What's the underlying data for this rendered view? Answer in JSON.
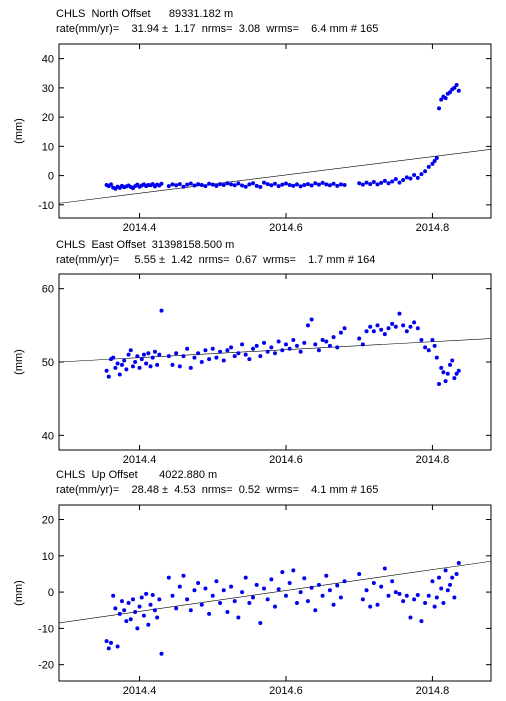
{
  "panels": [
    {
      "header_line1": "CHLS  North Offset      89331.182 m",
      "header_line2": "rate(mm/yr)=    31.94 ±  1.17  nrms=  3.08  wrms=    6.4 mm # 165"
    },
    {
      "header_line1": "CHLS  East Offset  31398158.500 m",
      "header_line2": "rate(mm/yr)=     5.55 ±  1.42  nrms=  0.67  wrms=    1.7 mm # 164"
    },
    {
      "header_line1": "CHLS  Up Offset       4022.880 m",
      "header_line2": "rate(mm/yr)=    28.48 ±  4.53  nrms=  0.52  wrms=    4.1 mm # 165"
    }
  ],
  "colors": {
    "points": "#0000ee",
    "trend": "#000000"
  },
  "chart_data": [
    {
      "type": "scatter",
      "title": "CHLS  North Offset      89331.182 m",
      "ylabel": "(mm)",
      "xlim": [
        2014.29,
        2014.88
      ],
      "ylim": [
        -14.5,
        45
      ],
      "xticks": [
        2014.4,
        2014.6,
        2014.8
      ],
      "yticks": [
        -10,
        0,
        10,
        20,
        30,
        40
      ],
      "trend": [
        [
          2014.29,
          -9.5
        ],
        [
          2014.88,
          9.0
        ]
      ],
      "x": [
        2014.355,
        2014.358,
        2014.361,
        2014.364,
        2014.367,
        2014.37,
        2014.373,
        2014.376,
        2014.379,
        2014.382,
        2014.385,
        2014.388,
        2014.391,
        2014.394,
        2014.397,
        2014.4,
        2014.403,
        2014.406,
        2014.409,
        2014.412,
        2014.415,
        2014.418,
        2014.421,
        2014.424,
        2014.427,
        2014.43,
        2014.44,
        2014.445,
        2014.45,
        2014.455,
        2014.46,
        2014.465,
        2014.47,
        2014.475,
        2014.48,
        2014.485,
        2014.49,
        2014.495,
        2014.5,
        2014.505,
        2014.51,
        2014.515,
        2014.52,
        2014.525,
        2014.53,
        2014.535,
        2014.54,
        2014.545,
        2014.55,
        2014.555,
        2014.56,
        2014.565,
        2014.57,
        2014.575,
        2014.58,
        2014.585,
        2014.59,
        2014.595,
        2014.6,
        2014.605,
        2014.61,
        2014.615,
        2014.62,
        2014.625,
        2014.63,
        2014.635,
        2014.64,
        2014.645,
        2014.65,
        2014.655,
        2014.66,
        2014.665,
        2014.67,
        2014.675,
        2014.68,
        2014.7,
        2014.705,
        2014.71,
        2014.715,
        2014.72,
        2014.725,
        2014.73,
        2014.735,
        2014.74,
        2014.745,
        2014.75,
        2014.755,
        2014.76,
        2014.765,
        2014.77,
        2014.775,
        2014.78,
        2014.785,
        2014.79,
        2014.795,
        2014.8,
        2014.803,
        2014.806,
        2014.809,
        2014.812,
        2014.815,
        2014.818,
        2014.821,
        2014.824,
        2014.827,
        2014.83,
        2014.833,
        2014.836
      ],
      "y": [
        -3.2,
        -3.6,
        -3.0,
        -4.1,
        -4.5,
        -3.8,
        -4.2,
        -3.5,
        -4.0,
        -3.7,
        -3.4,
        -3.9,
        -4.3,
        -3.6,
        -3.1,
        -3.8,
        -3.4,
        -3.0,
        -3.6,
        -3.2,
        -3.3,
        -2.9,
        -3.7,
        -3.1,
        -3.4,
        -2.8,
        -3.6,
        -3.0,
        -3.3,
        -2.9,
        -3.8,
        -3.1,
        -2.7,
        -3.4,
        -2.9,
        -3.2,
        -3.6,
        -2.8,
        -3.1,
        -3.5,
        -2.9,
        -3.2,
        -2.6,
        -3.0,
        -3.3,
        -2.7,
        -3.4,
        -3.8,
        -3.0,
        -2.6,
        -3.5,
        -3.9,
        -2.4,
        -2.9,
        -3.3,
        -2.8,
        -3.6,
        -3.1,
        -2.7,
        -3.2,
        -3.5,
        -3.0,
        -3.7,
        -3.2,
        -2.9,
        -3.4,
        -2.6,
        -3.1,
        -2.5,
        -3.0,
        -3.3,
        -2.8,
        -3.5,
        -3.0,
        -3.2,
        -2.6,
        -3.1,
        -2.4,
        -2.9,
        -2.2,
        -3.0,
        -2.5,
        -1.8,
        -2.6,
        -2.0,
        -1.2,
        -2.4,
        -1.5,
        -0.6,
        -1.0,
        0.2,
        -0.8,
        0.5,
        1.5,
        3.0,
        4.0,
        5.0,
        6.0,
        23.0,
        26.0,
        27.0,
        26.5,
        28.0,
        28.5,
        29.5,
        30.0,
        31.0,
        29.0
      ]
    },
    {
      "type": "scatter",
      "title": "CHLS  East Offset  31398158.500 m",
      "ylabel": "(mm)",
      "xlim": [
        2014.29,
        2014.88
      ],
      "ylim": [
        38,
        62
      ],
      "xticks": [
        2014.4,
        2014.6,
        2014.8
      ],
      "yticks": [
        40,
        50,
        60
      ],
      "trend": [
        [
          2014.29,
          50.0
        ],
        [
          2014.88,
          53.2
        ]
      ],
      "x": [
        2014.355,
        2014.358,
        2014.361,
        2014.364,
        2014.367,
        2014.37,
        2014.373,
        2014.376,
        2014.379,
        2014.382,
        2014.385,
        2014.388,
        2014.391,
        2014.394,
        2014.397,
        2014.4,
        2014.403,
        2014.406,
        2014.409,
        2014.412,
        2014.415,
        2014.418,
        2014.421,
        2014.424,
        2014.427,
        2014.43,
        2014.44,
        2014.445,
        2014.45,
        2014.455,
        2014.46,
        2014.465,
        2014.47,
        2014.475,
        2014.48,
        2014.485,
        2014.49,
        2014.495,
        2014.5,
        2014.505,
        2014.51,
        2014.515,
        2014.52,
        2014.525,
        2014.53,
        2014.535,
        2014.54,
        2014.545,
        2014.55,
        2014.555,
        2014.56,
        2014.565,
        2014.57,
        2014.575,
        2014.58,
        2014.585,
        2014.59,
        2014.595,
        2014.6,
        2014.605,
        2014.61,
        2014.615,
        2014.62,
        2014.625,
        2014.63,
        2014.635,
        2014.64,
        2014.645,
        2014.65,
        2014.655,
        2014.66,
        2014.665,
        2014.67,
        2014.675,
        2014.68,
        2014.7,
        2014.705,
        2014.71,
        2014.715,
        2014.72,
        2014.725,
        2014.73,
        2014.735,
        2014.74,
        2014.745,
        2014.75,
        2014.755,
        2014.76,
        2014.765,
        2014.77,
        2014.775,
        2014.78,
        2014.785,
        2014.79,
        2014.795,
        2014.8,
        2014.803,
        2014.806,
        2014.809,
        2014.812,
        2014.815,
        2014.818,
        2014.821,
        2014.824,
        2014.827,
        2014.83,
        2014.833,
        2014.836
      ],
      "y": [
        48.8,
        48.0,
        50.4,
        50.6,
        49.2,
        49.8,
        48.3,
        49.6,
        50.2,
        49.0,
        51.0,
        51.6,
        49.4,
        50.0,
        50.8,
        49.2,
        50.4,
        51.0,
        49.8,
        51.2,
        49.4,
        50.6,
        51.4,
        49.6,
        51.0,
        57.0,
        50.8,
        49.6,
        51.2,
        49.4,
        50.8,
        51.8,
        49.2,
        50.6,
        51.2,
        50.0,
        51.6,
        50.4,
        51.8,
        50.6,
        51.4,
        50.2,
        51.6,
        52.0,
        50.8,
        51.2,
        52.4,
        51.0,
        50.4,
        51.8,
        52.2,
        50.8,
        52.6,
        51.4,
        52.0,
        51.2,
        52.8,
        51.6,
        52.4,
        51.8,
        53.0,
        52.2,
        51.4,
        52.6,
        55.0,
        55.8,
        52.4,
        51.6,
        53.0,
        52.8,
        52.2,
        53.4,
        52.0,
        54.0,
        54.6,
        53.2,
        52.4,
        54.2,
        54.8,
        54.2,
        55.0,
        54.4,
        53.8,
        54.6,
        55.2,
        54.8,
        56.6,
        55.0,
        54.2,
        54.8,
        55.4,
        54.6,
        53.0,
        52.0,
        51.6,
        53.0,
        52.2,
        50.6,
        47.0,
        49.2,
        48.6,
        47.4,
        48.4,
        49.6,
        50.2,
        47.8,
        48.4,
        48.8
      ]
    },
    {
      "type": "scatter",
      "title": "CHLS  Up Offset       4022.880 m",
      "ylabel": "(mm)",
      "xlim": [
        2014.29,
        2014.88
      ],
      "ylim": [
        -24.5,
        24
      ],
      "xticks": [
        2014.4,
        2014.6,
        2014.8
      ],
      "yticks": [
        -20,
        -10,
        0,
        10,
        20
      ],
      "trend": [
        [
          2014.29,
          -8.5
        ],
        [
          2014.88,
          8.5
        ]
      ],
      "x": [
        2014.355,
        2014.358,
        2014.361,
        2014.364,
        2014.367,
        2014.37,
        2014.373,
        2014.376,
        2014.379,
        2014.382,
        2014.385,
        2014.388,
        2014.391,
        2014.394,
        2014.397,
        2014.4,
        2014.403,
        2014.406,
        2014.409,
        2014.412,
        2014.415,
        2014.418,
        2014.421,
        2014.424,
        2014.427,
        2014.43,
        2014.44,
        2014.445,
        2014.45,
        2014.455,
        2014.46,
        2014.465,
        2014.47,
        2014.475,
        2014.48,
        2014.485,
        2014.49,
        2014.495,
        2014.5,
        2014.505,
        2014.51,
        2014.515,
        2014.52,
        2014.525,
        2014.53,
        2014.535,
        2014.54,
        2014.545,
        2014.55,
        2014.555,
        2014.56,
        2014.565,
        2014.57,
        2014.575,
        2014.58,
        2014.585,
        2014.59,
        2014.595,
        2014.6,
        2014.605,
        2014.61,
        2014.615,
        2014.62,
        2014.625,
        2014.63,
        2014.635,
        2014.64,
        2014.645,
        2014.65,
        2014.655,
        2014.66,
        2014.665,
        2014.67,
        2014.675,
        2014.68,
        2014.7,
        2014.705,
        2014.71,
        2014.715,
        2014.72,
        2014.725,
        2014.73,
        2014.735,
        2014.74,
        2014.745,
        2014.75,
        2014.755,
        2014.76,
        2014.765,
        2014.77,
        2014.775,
        2014.78,
        2014.785,
        2014.79,
        2014.795,
        2014.8,
        2014.803,
        2014.806,
        2014.809,
        2014.812,
        2014.815,
        2014.818,
        2014.821,
        2014.824,
        2014.827,
        2014.83,
        2014.833,
        2014.836
      ],
      "y": [
        -13.5,
        -15.5,
        -14.0,
        -1.0,
        -4.5,
        -15.0,
        -6.0,
        -2.5,
        -5.0,
        -8.0,
        -3.0,
        -7.5,
        -2.0,
        -5.5,
        -10.0,
        -4.0,
        -1.5,
        -6.5,
        -0.5,
        -9.0,
        -3.5,
        -0.8,
        -5.0,
        -7.0,
        -2.0,
        -17.0,
        4.0,
        -1.0,
        -4.5,
        1.5,
        4.5,
        -2.0,
        -5.0,
        0.5,
        2.5,
        -3.5,
        1.0,
        -6.0,
        -1.0,
        3.0,
        -3.0,
        0.5,
        -5.5,
        1.5,
        -2.5,
        -7.0,
        0.0,
        4.0,
        -3.0,
        -1.5,
        2.0,
        -8.5,
        1.0,
        -2.0,
        3.5,
        -4.0,
        0.8,
        5.5,
        -1.0,
        2.5,
        6.0,
        -3.0,
        0.0,
        3.8,
        -2.5,
        1.2,
        -5.0,
        2.0,
        -1.0,
        4.5,
        0.5,
        -3.5,
        1.8,
        -1.5,
        3.0,
        5.0,
        -2.0,
        0.5,
        -4.0,
        2.5,
        -3.5,
        1.5,
        6.5,
        -1.0,
        3.0,
        0.0,
        -0.5,
        -2.5,
        -1.0,
        -7.0,
        -2.0,
        -0.8,
        -8.0,
        -3.0,
        -1.0,
        3.0,
        -4.0,
        -1.5,
        4.0,
        1.0,
        -3.0,
        6.0,
        0.5,
        2.0,
        4.0,
        -1.5,
        5.0,
        8.0
      ]
    }
  ]
}
